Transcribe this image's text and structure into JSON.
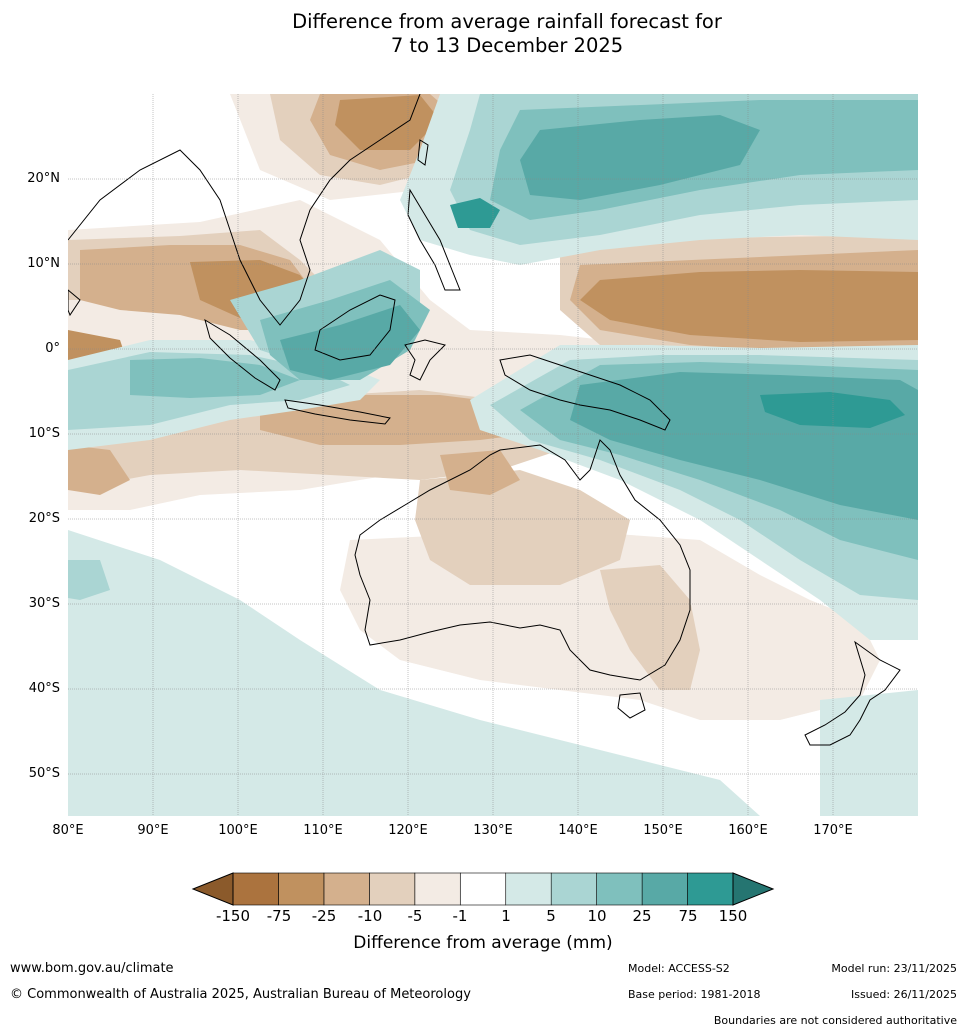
{
  "title": {
    "line1": "Difference from average rainfall forecast for",
    "line2": "7 to 13 December 2025"
  },
  "map": {
    "region": "Maritime Continent, Australia and the western Pacific",
    "lon_range": [
      80,
      180
    ],
    "lat_range": [
      -55,
      30
    ],
    "lat_labels": [
      "20°N",
      "10°N",
      "0°",
      "10°S",
      "20°S",
      "30°S",
      "40°S",
      "50°S"
    ],
    "lon_labels": [
      "80°E",
      "90°E",
      "100°E",
      "110°E",
      "120°E",
      "130°E",
      "140°E",
      "150°E",
      "160°E",
      "170°E"
    ]
  },
  "colorbar": {
    "tick_labels": [
      "-150",
      "-75",
      "-25",
      "-10",
      "-5",
      "-1",
      "1",
      "5",
      "10",
      "25",
      "75",
      "150"
    ],
    "colors": {
      "below_min": "#8b5a2b",
      "dry_150_75": "#ab733e",
      "dry_75_25": "#c0915f",
      "dry_25_10": "#d4b08d",
      "dry_10_5": "#e3d0bd",
      "dry_5_1": "#f3ebe4",
      "neutral": "#ffffff",
      "wet_1_5": "#d4e9e7",
      "wet_5_10": "#aad5d3",
      "wet_10_25": "#7fc0bd",
      "wet_25_75": "#58a9a6",
      "wet_75_150": "#2e9a94",
      "above_max": "#257571"
    },
    "label": "Difference from average (mm)"
  },
  "footer": {
    "website": "www.bom.gov.au/climate",
    "copyright": "© Commonwealth of Australia 2025, Australian Bureau of Meteorology",
    "model": "Model: ACCESS-S2",
    "base_period": "Base period: 1981-2018",
    "model_run": "Model run: 23/11/2025",
    "issued": "Issued: 26/11/2025",
    "disclaimer": "Boundaries are not considered authoritative"
  }
}
